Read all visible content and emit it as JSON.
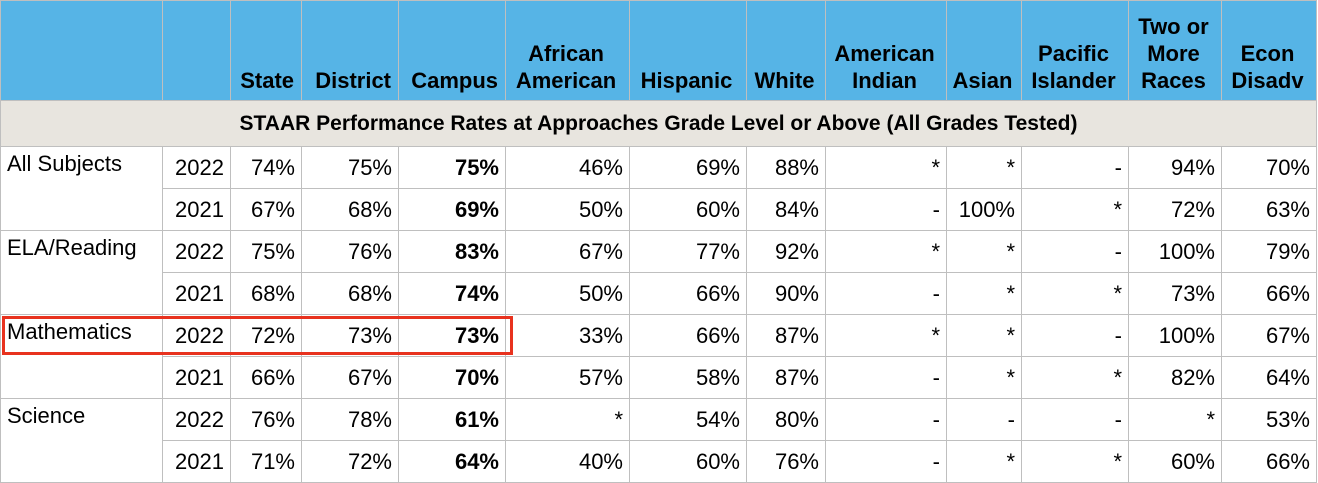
{
  "headers": [
    "",
    "",
    "State",
    "District",
    "Campus",
    "African American",
    "Hispanic",
    "White",
    "American Indian",
    "Asian",
    "Pacific Islander",
    "Two or More Races",
    "Econ Disadv"
  ],
  "section_title": "STAAR Performance Rates at Approaches Grade Level or Above (All Grades Tested)",
  "rows": [
    {
      "subject": "All Subjects",
      "year": "2022",
      "values": [
        "74%",
        "75%",
        "75%",
        "46%",
        "69%",
        "88%",
        "*",
        "*",
        "-",
        "94%",
        "70%"
      ]
    },
    {
      "subject": "",
      "year": "2021",
      "values": [
        "67%",
        "68%",
        "69%",
        "50%",
        "60%",
        "84%",
        "-",
        "100%",
        "*",
        "72%",
        "63%"
      ]
    },
    {
      "subject": "ELA/Reading",
      "year": "2022",
      "values": [
        "75%",
        "76%",
        "83%",
        "67%",
        "77%",
        "92%",
        "*",
        "*",
        "-",
        "100%",
        "79%"
      ]
    },
    {
      "subject": "",
      "year": "2021",
      "values": [
        "68%",
        "68%",
        "74%",
        "50%",
        "66%",
        "90%",
        "-",
        "*",
        "*",
        "73%",
        "66%"
      ]
    },
    {
      "subject": "Mathematics",
      "year": "2022",
      "values": [
        "72%",
        "73%",
        "73%",
        "33%",
        "66%",
        "87%",
        "*",
        "*",
        "-",
        "100%",
        "67%"
      ]
    },
    {
      "subject": "",
      "year": "2021",
      "values": [
        "66%",
        "67%",
        "70%",
        "57%",
        "58%",
        "87%",
        "-",
        "*",
        "*",
        "82%",
        "64%"
      ]
    },
    {
      "subject": "Science",
      "year": "2022",
      "values": [
        "76%",
        "78%",
        "61%",
        "*",
        "54%",
        "80%",
        "-",
        "-",
        "-",
        "*",
        "53%"
      ]
    },
    {
      "subject": "",
      "year": "2021",
      "values": [
        "71%",
        "72%",
        "64%",
        "40%",
        "60%",
        "76%",
        "-",
        "*",
        "*",
        "60%",
        "66%"
      ]
    }
  ],
  "colors": {
    "header_bg": "#56b4e6",
    "section_bg": "#e8e5df",
    "highlight": "#e8321e"
  }
}
